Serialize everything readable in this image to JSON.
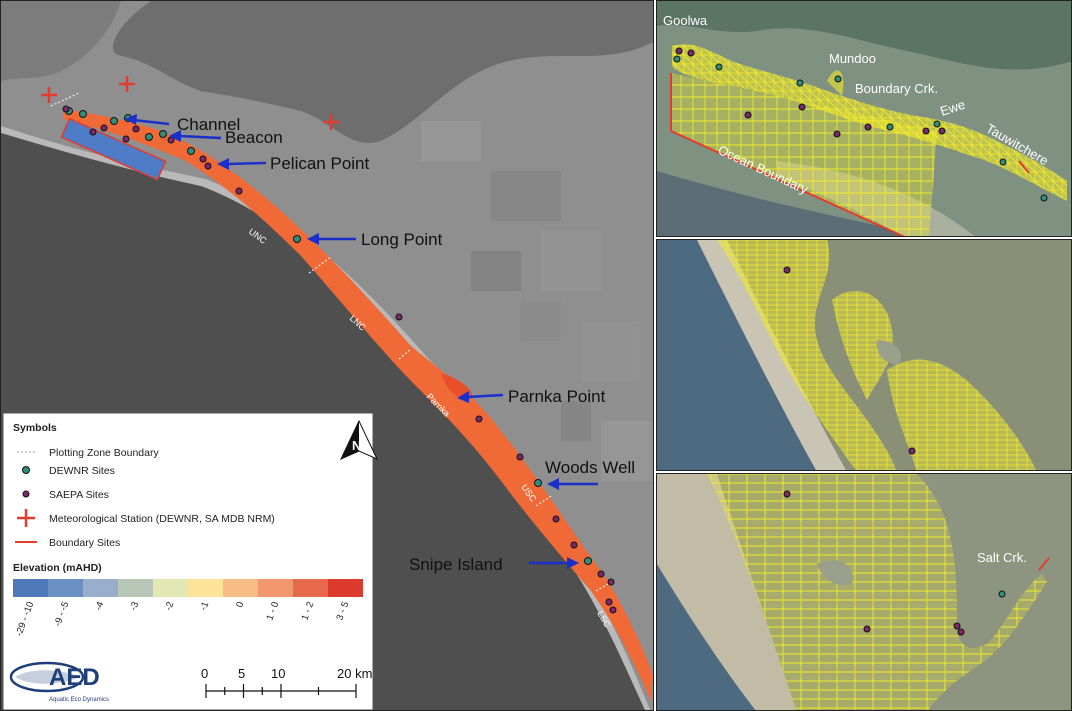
{
  "main_map": {
    "callouts": [
      "Channel",
      "Beacon",
      "Pelican Point",
      "Long Point",
      "Parnka Point",
      "Woods Well",
      "Snipe Island"
    ],
    "zones": [
      "UNC",
      "LNC",
      "Parnka",
      "USC",
      "LSC"
    ]
  },
  "legend": {
    "symbols_title": "Symbols",
    "items": [
      "Plotting Zone Boundary",
      "DEWNR Sites",
      "SAEPA Sites",
      "Meteorological Station (DEWNR, SA MDB NRM)",
      "Boundary Sites"
    ],
    "elevation_title": "Elevation (mAHD)",
    "elevation_classes": [
      "-29 - -10",
      "-9 - -5",
      "-4",
      "-3",
      "-2",
      "-1",
      "0",
      "1 - 0",
      "1 - 2",
      "3 - 5"
    ],
    "elevation_colors": [
      "#4e78b8",
      "#6b8fc3",
      "#98aeca",
      "#b8c6b8",
      "#e3e7b4",
      "#fbe49a",
      "#f8bd84",
      "#f29870",
      "#e86a4e",
      "#dc3a2c"
    ]
  },
  "north_arrow": "N",
  "scale_bar": {
    "ticks": [
      "0",
      "5",
      "10",
      "20 km"
    ]
  },
  "logo": {
    "text": "AED",
    "subtitle": "Aquatic Eco Dynamics"
  },
  "inset_top": {
    "labels": [
      "Goolwa",
      "Mundoo",
      "Boundary Crk.",
      "Ewe",
      "Tauwitchere",
      "Ocean Boundary"
    ]
  },
  "inset_bottom": {
    "labels": [
      "Salt Crk."
    ]
  },
  "colors": {
    "dewnr": "#2f8f7c",
    "saepa": "#7a2a6a",
    "met_station": "#e33b2e",
    "boundary": "#e33b2e",
    "arrow": "#1b2fc9",
    "mesh": "#f2ea2a",
    "coorong": "#f06a38"
  }
}
